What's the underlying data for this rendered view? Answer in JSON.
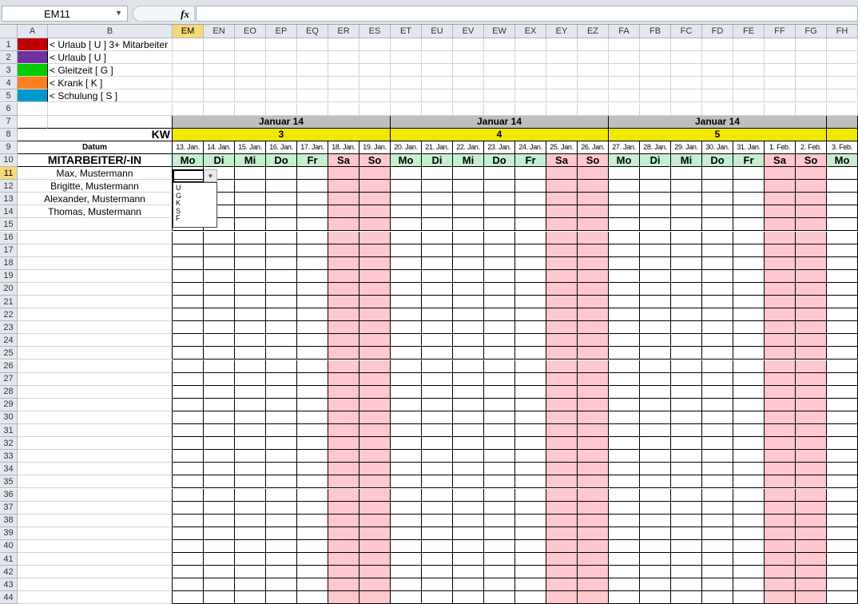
{
  "name_box": {
    "value": "EM11"
  },
  "formula_bar": {
    "fx_label": "fx",
    "value": ""
  },
  "column_headers": [
    "A",
    "B",
    "EM",
    "EN",
    "EO",
    "EP",
    "EQ",
    "ER",
    "ES",
    "ET",
    "EU",
    "EV",
    "EW",
    "EX",
    "EY",
    "EZ",
    "FA",
    "FB",
    "FC",
    "FD",
    "FE",
    "FF",
    "FG",
    "FH"
  ],
  "selected_column": "EM",
  "selected_row": "11",
  "row_headers": [
    "1",
    "2",
    "3",
    "4",
    "5",
    "6",
    "7",
    "8",
    "9",
    "10",
    "11",
    "12",
    "13",
    "14",
    "15",
    "16",
    "17",
    "18",
    "19",
    "20",
    "21",
    "22",
    "23",
    "24",
    "25",
    "26",
    "27",
    "28",
    "29",
    "30",
    "31",
    "32",
    "33",
    "34",
    "35",
    "36",
    "37",
    "38",
    "39",
    "40",
    "41",
    "42",
    "43",
    "44"
  ],
  "legend": [
    {
      "color": "#c00000",
      "label": "< Urlaub [ U ] 3+ Mitarbeiter"
    },
    {
      "color": "#7030a0",
      "label": "< Urlaub [ U ]"
    },
    {
      "color": "#00cc00",
      "label": "< Gleitzeit [ G ]"
    },
    {
      "color": "#ff7f1e",
      "label": "< Krank [ K ]"
    },
    {
      "color": "#0099cc",
      "label": "< Schulung [ S ]"
    }
  ],
  "labels": {
    "kw": "KW",
    "datum": "Datum",
    "mitarbeiter": "MITARBEITER/-IN"
  },
  "weeks": [
    {
      "month": "Januar 14",
      "kw": "3",
      "span": 7
    },
    {
      "month": "Januar 14",
      "kw": "4",
      "span": 7
    },
    {
      "month": "Januar 14",
      "kw": "5",
      "span": 7
    },
    {
      "month": "",
      "kw": "",
      "span": 1
    }
  ],
  "days": [
    {
      "date": "13. Jan.",
      "day": "Mo",
      "weekend": false
    },
    {
      "date": "14. Jan.",
      "day": "Di",
      "weekend": false
    },
    {
      "date": "15. Jan.",
      "day": "Mi",
      "weekend": false
    },
    {
      "date": "16. Jan.",
      "day": "Do",
      "weekend": false
    },
    {
      "date": "17. Jan.",
      "day": "Fr",
      "weekend": false
    },
    {
      "date": "18. Jan.",
      "day": "Sa",
      "weekend": true
    },
    {
      "date": "19. Jan.",
      "day": "So",
      "weekend": true
    },
    {
      "date": "20. Jan.",
      "day": "Mo",
      "weekend": false
    },
    {
      "date": "21. Jan.",
      "day": "Di",
      "weekend": false
    },
    {
      "date": "22. Jan.",
      "day": "Mi",
      "weekend": false
    },
    {
      "date": "23. Jan.",
      "day": "Do",
      "weekend": false
    },
    {
      "date": "24. Jan.",
      "day": "Fr",
      "weekend": false
    },
    {
      "date": "25. Jan.",
      "day": "Sa",
      "weekend": true
    },
    {
      "date": "26. Jan.",
      "day": "So",
      "weekend": true
    },
    {
      "date": "27. Jan.",
      "day": "Mo",
      "weekend": false
    },
    {
      "date": "28. Jan.",
      "day": "Di",
      "weekend": false
    },
    {
      "date": "29. Jan.",
      "day": "Mi",
      "weekend": false
    },
    {
      "date": "30. Jan.",
      "day": "Do",
      "weekend": false
    },
    {
      "date": "31. Jan.",
      "day": "Fr",
      "weekend": false
    },
    {
      "date": "1. Feb.",
      "day": "Sa",
      "weekend": true
    },
    {
      "date": "2. Feb.",
      "day": "So",
      "weekend": true
    },
    {
      "date": "3. Feb.",
      "day": "Mo",
      "weekend": false
    }
  ],
  "employees": [
    "Max, Mustermann",
    "Brigitte, Mustermann",
    "Alexander, Mustermann",
    "Thomas, Mustermann"
  ],
  "dropdown": {
    "options": [
      "U",
      "G",
      "K",
      "S",
      "F"
    ]
  },
  "colors": {
    "month_bg": "#bfbfbf",
    "kw_bg": "#f0e800",
    "weekday_bg": "#c6efce",
    "weekend_bg": "#ffc7ce"
  }
}
